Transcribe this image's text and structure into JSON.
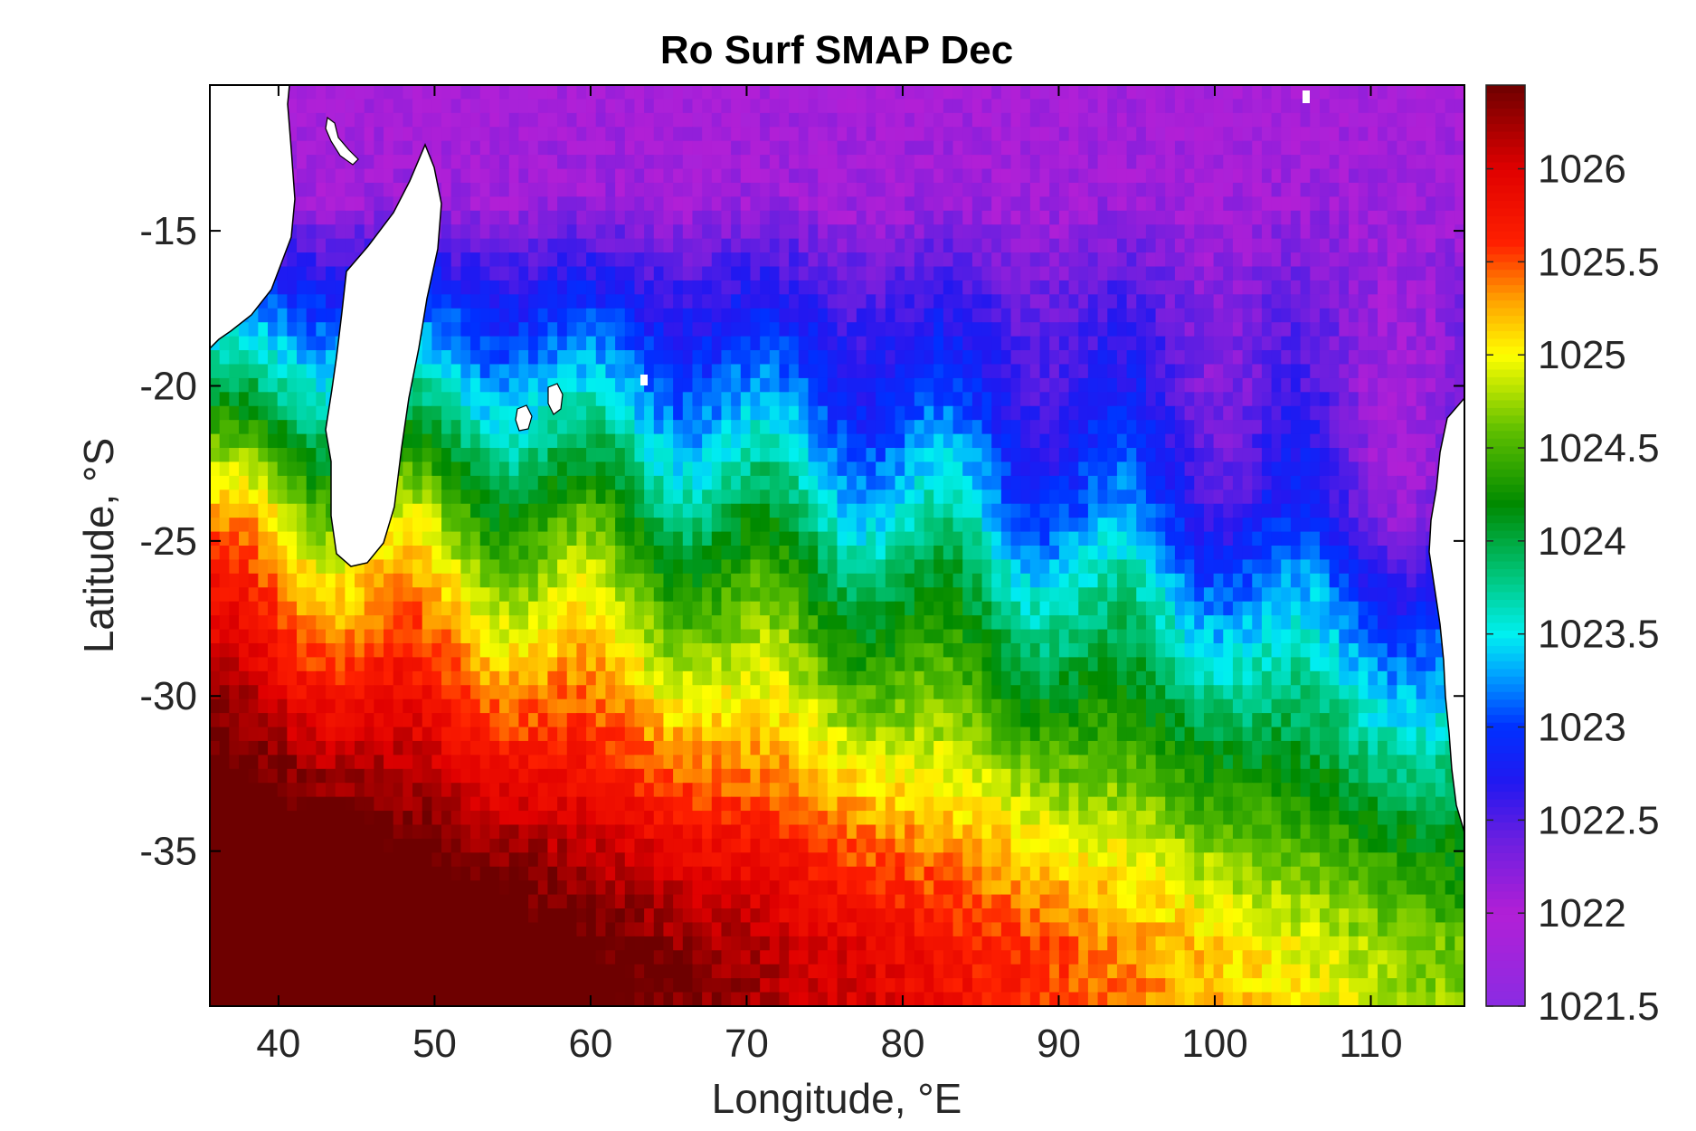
{
  "chart_data": {
    "type": "heatmap",
    "title": "Ro Surf SMAP Dec",
    "xlabel": "Longitude, °E",
    "ylabel": "Latitude, °S",
    "xlim": [
      35.6,
      116
    ],
    "ylim": [
      -40,
      -10.3
    ],
    "x_ticks": [
      40,
      50,
      60,
      70,
      80,
      90,
      100,
      110
    ],
    "x_tick_labels": [
      "40",
      "50",
      "60",
      "70",
      "80",
      "90",
      "100",
      "110"
    ],
    "y_ticks": [
      -15,
      -20,
      -25,
      -30,
      -35
    ],
    "y_tick_labels": [
      "-15",
      "-20",
      "-25",
      "-30",
      "-35"
    ],
    "colorbar": {
      "limits": [
        1021.5,
        1026.45
      ],
      "ticks": [
        1021.5,
        1022,
        1022.5,
        1023,
        1023.5,
        1024,
        1024.5,
        1025,
        1025.5,
        1026
      ],
      "tick_labels": [
        "1021.5",
        "1022",
        "1022.5",
        "1023",
        "1023.5",
        "1024",
        "1024.5",
        "1025",
        "1025.5",
        "1026"
      ],
      "colormap": [
        {
          "v": 1021.5,
          "c": "#8a2be2"
        },
        {
          "v": 1022.0,
          "c": "#b21fd6"
        },
        {
          "v": 1022.4,
          "c": "#6a1fe0"
        },
        {
          "v": 1022.7,
          "c": "#2218f0"
        },
        {
          "v": 1023.0,
          "c": "#0030ff"
        },
        {
          "v": 1023.3,
          "c": "#00a8ff"
        },
        {
          "v": 1023.5,
          "c": "#00f0f0"
        },
        {
          "v": 1023.8,
          "c": "#00c880"
        },
        {
          "v": 1024.2,
          "c": "#008a00"
        },
        {
          "v": 1024.6,
          "c": "#60c000"
        },
        {
          "v": 1025.0,
          "c": "#ffff00"
        },
        {
          "v": 1025.3,
          "c": "#ffa000"
        },
        {
          "v": 1025.6,
          "c": "#ff2000"
        },
        {
          "v": 1026.0,
          "c": "#e00000"
        },
        {
          "v": 1026.45,
          "c": "#6e0000"
        }
      ]
    },
    "field_profile": [
      {
        "lat": -10.3,
        "value": 1022.0
      },
      {
        "lat": -14,
        "value": 1022.1
      },
      {
        "lat": -17,
        "value": 1022.6
      },
      {
        "lat": -20,
        "value": 1023.0
      },
      {
        "lat": -23,
        "value": 1023.5
      },
      {
        "lat": -26,
        "value": 1024.1
      },
      {
        "lat": -29,
        "value": 1024.6
      },
      {
        "lat": -32,
        "value": 1025.1
      },
      {
        "lat": -35,
        "value": 1025.6
      },
      {
        "lat": -38,
        "value": 1026.0
      },
      {
        "lat": -40,
        "value": 1026.1
      }
    ],
    "land_color": "#ffffff",
    "grid": false
  }
}
